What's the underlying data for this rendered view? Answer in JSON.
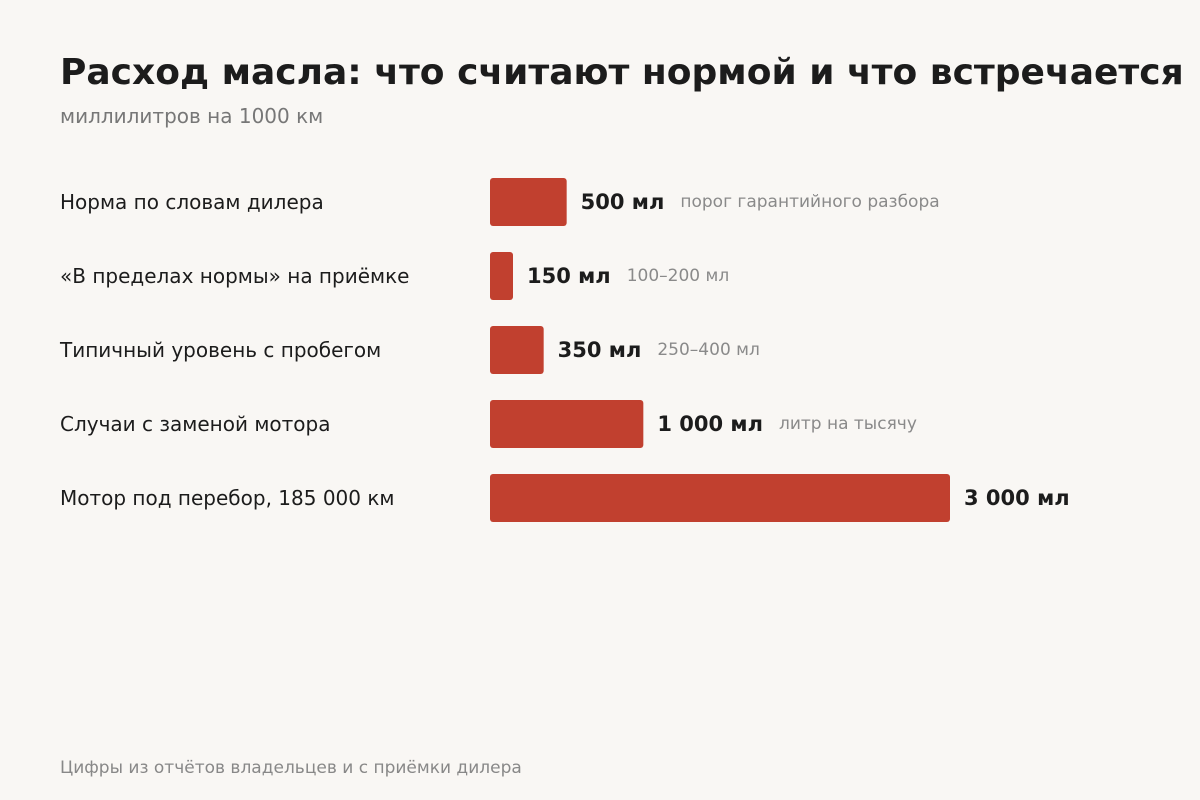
{
  "chart_data": {
    "type": "bar",
    "orientation": "horizontal",
    "title": "Расход масла: что считают нормой и что встречается",
    "subtitle": "миллилитров на 1000 км",
    "source": "Цифры из отчётов владельцев и с приёмки дилера",
    "unit": "мл",
    "xlim": [
      0,
      3000
    ],
    "bar_color": "#c1402f",
    "categories": [
      "Норма по словам дилера",
      "«В пределах нормы» на приёмке",
      "Типичный уровень с пробегом",
      "Случаи с заменой мотора",
      "Мотор под перебор, 185 000 км"
    ],
    "values": [
      500,
      150,
      350,
      1000,
      3000
    ],
    "value_labels": [
      "500 мл",
      "150 мл",
      "350 мл",
      "1 000 мл",
      "3 000 мл"
    ],
    "annotations": [
      "порог гарантийного разбора",
      "100–200 мл",
      "250–400 мл",
      "литр на тысячу",
      ""
    ]
  }
}
